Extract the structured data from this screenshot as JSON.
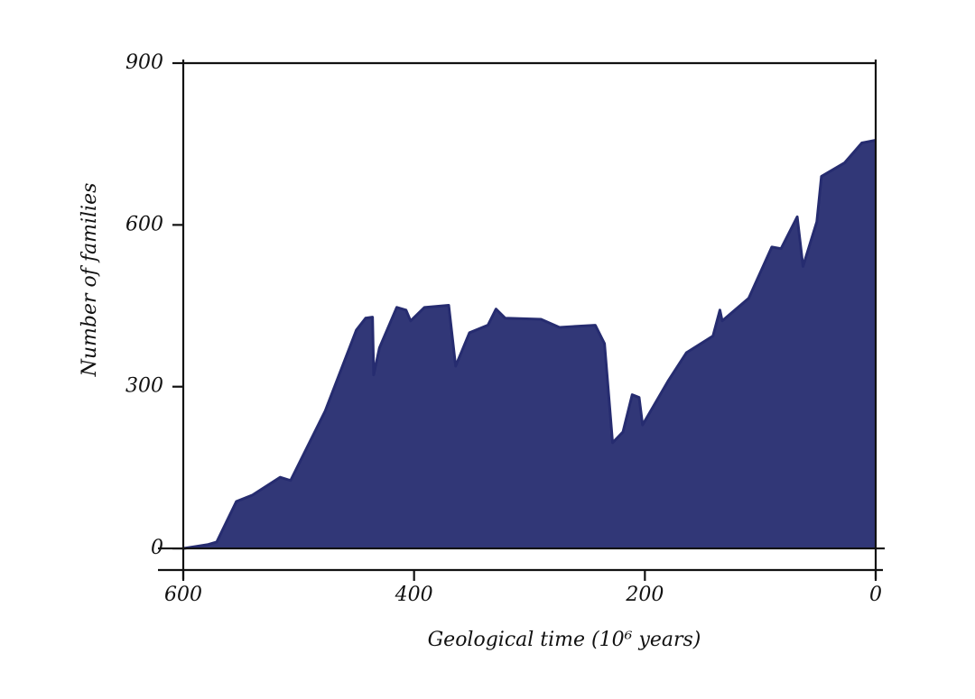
{
  "chart_data": {
    "type": "area",
    "xlabel": "Geological time (10⁶ years)",
    "ylabel": "Number of families",
    "x": [
      600,
      579,
      571,
      554,
      540,
      516,
      507,
      477,
      450,
      442,
      436,
      435,
      430,
      415,
      407,
      403,
      391,
      370,
      364,
      352,
      336,
      329,
      321,
      290,
      274,
      243,
      235,
      228,
      219,
      211,
      205,
      202,
      180,
      164,
      141,
      135,
      133,
      110,
      90,
      82,
      68,
      63,
      51,
      47,
      27,
      12,
      0
    ],
    "values": [
      0,
      7,
      12,
      87,
      99,
      132,
      126,
      255,
      405,
      427,
      429,
      322,
      372,
      447,
      442,
      422,
      447,
      451,
      338,
      400,
      414,
      444,
      427,
      425,
      410,
      414,
      380,
      196,
      216,
      285,
      280,
      229,
      310,
      363,
      394,
      442,
      422,
      464,
      559,
      556,
      615,
      523,
      606,
      690,
      715,
      752,
      757
    ],
    "color": "#262c70",
    "xlim": [
      600,
      0
    ],
    "xticks": [
      600,
      400,
      200,
      0
    ],
    "ylim": [
      -40,
      900
    ],
    "yticks": [
      0,
      300,
      600,
      900
    ]
  }
}
